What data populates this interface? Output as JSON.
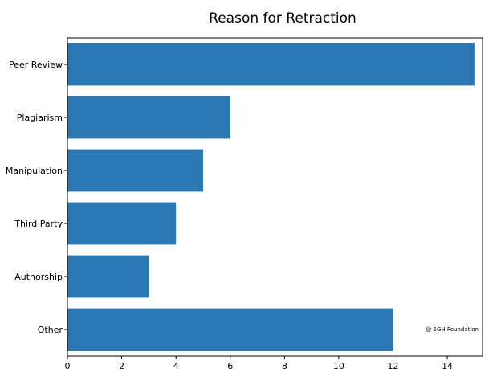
{
  "chart_data": {
    "type": "bar",
    "orientation": "horizontal",
    "title": "Reason for Retraction",
    "xlabel": "",
    "ylabel": "",
    "categories": [
      "Peer Review",
      "Plagiarism",
      "Manipulation",
      "Third Party",
      "Authorship",
      "Other"
    ],
    "values": [
      15,
      6,
      5,
      4,
      3,
      12
    ],
    "xlim": [
      0,
      15.3
    ],
    "x_ticks": [
      0,
      2,
      4,
      6,
      8,
      10,
      12,
      14
    ],
    "bar_color": "#2a77b4",
    "grid": false,
    "legend": "none",
    "annotation": "@ 5GH Foundation"
  }
}
